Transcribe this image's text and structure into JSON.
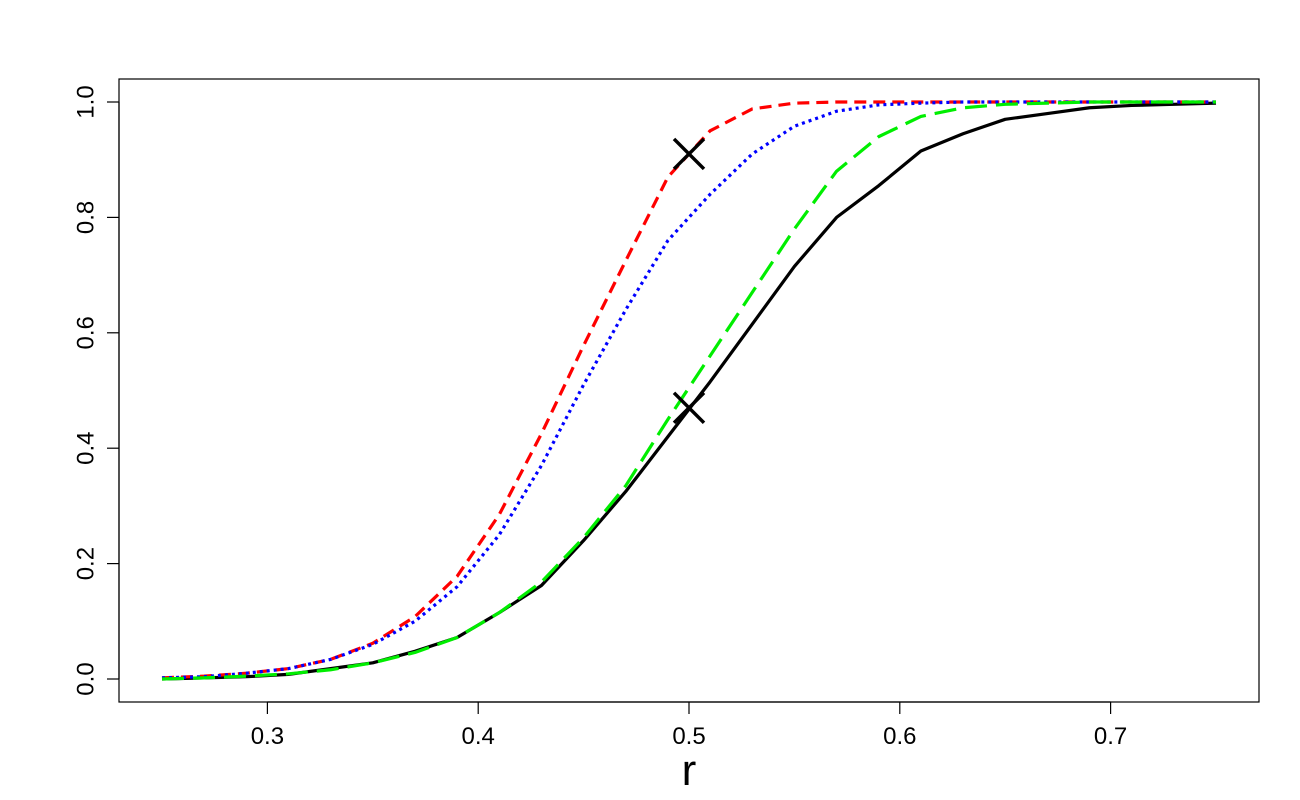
{
  "chart_data": {
    "type": "line",
    "title": "",
    "xlabel": "r",
    "ylabel": "",
    "xlim": [
      0.25,
      0.75
    ],
    "ylim": [
      0.0,
      1.0
    ],
    "xticks": [
      "0.3",
      "0.4",
      "0.5",
      "0.6",
      "0.7"
    ],
    "yticks": [
      "0.0",
      "0.2",
      "0.4",
      "0.6",
      "0.8",
      "1.0"
    ],
    "grid": false,
    "legend": "none",
    "series": [
      {
        "color": "#000000",
        "dash": "solid",
        "x": [
          0.25,
          0.27,
          0.29,
          0.31,
          0.33,
          0.35,
          0.37,
          0.39,
          0.41,
          0.43,
          0.45,
          0.47,
          0.49,
          0.51,
          0.53,
          0.55,
          0.57,
          0.59,
          0.61,
          0.63,
          0.65,
          0.67,
          0.69,
          0.71,
          0.73,
          0.75
        ],
        "y": [
          0.0,
          0.002,
          0.004,
          0.008,
          0.018,
          0.028,
          0.048,
          0.072,
          0.115,
          0.162,
          0.24,
          0.325,
          0.42,
          0.515,
          0.615,
          0.715,
          0.8,
          0.855,
          0.915,
          0.945,
          0.97,
          0.98,
          0.99,
          0.994,
          0.996,
          0.998
        ]
      },
      {
        "color": "#ff0000",
        "dash": "dashed",
        "x": [
          0.25,
          0.27,
          0.29,
          0.31,
          0.33,
          0.35,
          0.37,
          0.39,
          0.41,
          0.43,
          0.45,
          0.47,
          0.49,
          0.51,
          0.53,
          0.55,
          0.57,
          0.59,
          0.61,
          0.63,
          0.65,
          0.67,
          0.69,
          0.71,
          0.73,
          0.75
        ],
        "y": [
          0.002,
          0.005,
          0.01,
          0.018,
          0.034,
          0.062,
          0.108,
          0.178,
          0.285,
          0.425,
          0.578,
          0.725,
          0.87,
          0.95,
          0.988,
          0.998,
          1.0,
          1.0,
          1.0,
          1.0,
          1.0,
          1.0,
          1.0,
          1.0,
          1.0,
          1.0
        ]
      },
      {
        "color": "#0000ff",
        "dash": "dotted",
        "x": [
          0.25,
          0.27,
          0.29,
          0.31,
          0.33,
          0.35,
          0.37,
          0.39,
          0.41,
          0.43,
          0.45,
          0.47,
          0.49,
          0.51,
          0.53,
          0.55,
          0.57,
          0.59,
          0.61,
          0.63,
          0.65,
          0.67,
          0.69,
          0.71,
          0.73,
          0.75
        ],
        "y": [
          0.002,
          0.004,
          0.01,
          0.018,
          0.034,
          0.06,
          0.1,
          0.16,
          0.25,
          0.37,
          0.51,
          0.64,
          0.76,
          0.84,
          0.91,
          0.958,
          0.984,
          0.995,
          0.998,
          1.0,
          1.0,
          1.0,
          1.0,
          1.0,
          1.0,
          1.0
        ]
      },
      {
        "color": "#00ee00",
        "dash": "longdash",
        "x": [
          0.25,
          0.27,
          0.29,
          0.31,
          0.33,
          0.35,
          0.37,
          0.39,
          0.41,
          0.43,
          0.45,
          0.47,
          0.49,
          0.51,
          0.53,
          0.55,
          0.57,
          0.59,
          0.61,
          0.63,
          0.65,
          0.67,
          0.69,
          0.71,
          0.73,
          0.75
        ],
        "y": [
          0.0,
          0.002,
          0.005,
          0.009,
          0.016,
          0.028,
          0.046,
          0.072,
          0.115,
          0.168,
          0.245,
          0.335,
          0.45,
          0.56,
          0.67,
          0.78,
          0.88,
          0.94,
          0.975,
          0.99,
          0.996,
          0.998,
          1.0,
          1.0,
          1.0,
          1.0
        ]
      }
    ],
    "markers": [
      {
        "x": 0.5,
        "y": 0.91,
        "symbol": "x",
        "color": "#000000"
      },
      {
        "x": 0.5,
        "y": 0.47,
        "symbol": "x",
        "color": "#000000"
      }
    ]
  }
}
